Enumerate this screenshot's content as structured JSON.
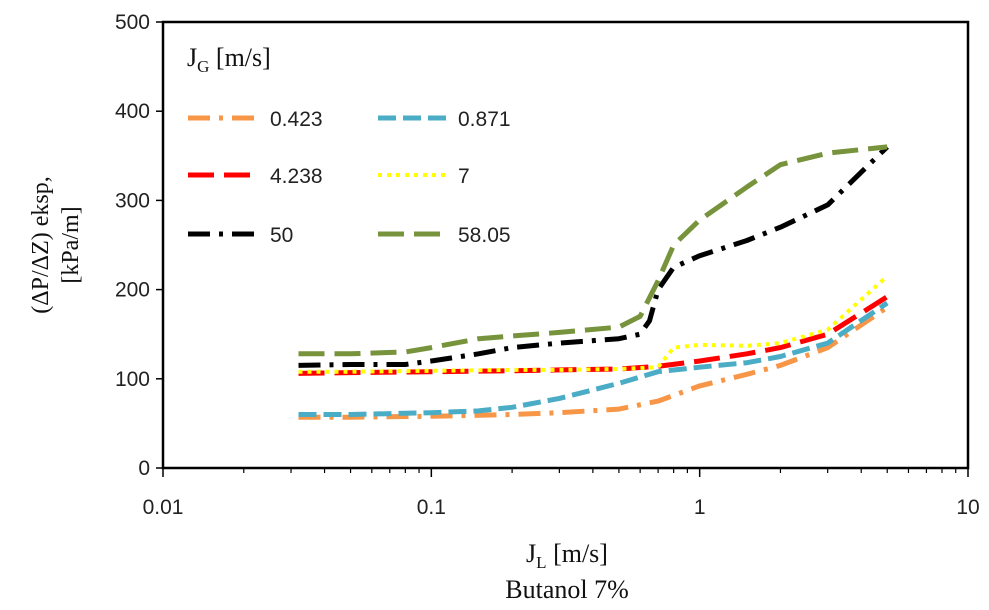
{
  "chart_data": {
    "type": "line",
    "xscale": "log",
    "xlim": [
      0.01,
      10
    ],
    "ylim": [
      0,
      500
    ],
    "x_ticks": [
      "0.01",
      "0.1",
      "1",
      "10"
    ],
    "y_ticks": [
      "0",
      "100",
      "200",
      "300",
      "400",
      "500"
    ],
    "xlabel": {
      "main": "J",
      "sub": "L",
      "unit": " [m/s]"
    },
    "xlabel_note": "Butanol 7%",
    "ylabel": {
      "line1": "(ΔP/ΔZ) eksp,",
      "line2": "[kPa/m]"
    },
    "legend_title": {
      "main": "J",
      "sub": "G",
      "unit": " [m/s]"
    },
    "legend_position": "top-left",
    "grid": false,
    "series": [
      {
        "name": "0.423",
        "color": "#F79646",
        "dash": "dashdot",
        "x": [
          0.032,
          0.05,
          0.1,
          0.2,
          0.3,
          0.5,
          0.7,
          1.0,
          1.5,
          2.0,
          3.0,
          5.0
        ],
        "y": [
          57,
          57,
          58,
          60,
          62,
          66,
          75,
          92,
          105,
          115,
          135,
          180
        ]
      },
      {
        "name": "0.871",
        "color": "#4BACC6",
        "dash": "dash",
        "x": [
          0.032,
          0.05,
          0.1,
          0.15,
          0.2,
          0.3,
          0.5,
          0.7,
          1.0,
          1.5,
          2.0,
          3.0,
          5.0
        ],
        "y": [
          60,
          60,
          62,
          64,
          68,
          78,
          95,
          108,
          113,
          118,
          125,
          140,
          185
        ]
      },
      {
        "name": "4.238",
        "color": "#FF0000",
        "dash": "longdash",
        "x": [
          0.032,
          0.05,
          0.1,
          0.2,
          0.3,
          0.5,
          0.7,
          1.0,
          1.5,
          2.0,
          3.0,
          5.0
        ],
        "y": [
          106,
          107,
          108,
          109,
          110,
          111,
          114,
          120,
          128,
          135,
          150,
          192
        ]
      },
      {
        "name": "7",
        "color": "#FFFF00",
        "dash": "dot",
        "x": [
          0.032,
          0.05,
          0.1,
          0.2,
          0.3,
          0.5,
          0.7,
          0.8,
          1.0,
          1.5,
          2.0,
          3.0,
          5.0
        ],
        "y": [
          108,
          108,
          109,
          110,
          110,
          111,
          113,
          135,
          138,
          137,
          140,
          155,
          215
        ]
      },
      {
        "name": "50",
        "color": "#000000",
        "dash": "dashdot",
        "x": [
          0.032,
          0.05,
          0.08,
          0.1,
          0.15,
          0.2,
          0.3,
          0.5,
          0.6,
          0.65,
          0.7,
          0.8,
          1.0,
          1.5,
          2.0,
          3.0,
          5.0
        ],
        "y": [
          115,
          116,
          116,
          120,
          128,
          135,
          140,
          145,
          150,
          165,
          200,
          225,
          238,
          255,
          270,
          295,
          360
        ]
      },
      {
        "name": "58.05",
        "color": "#77933C",
        "dash": "longdash",
        "x": [
          0.032,
          0.05,
          0.08,
          0.1,
          0.15,
          0.2,
          0.3,
          0.5,
          0.6,
          0.7,
          0.8,
          1.0,
          1.5,
          2.0,
          3.0,
          5.0
        ],
        "y": [
          128,
          128,
          130,
          135,
          145,
          148,
          152,
          158,
          170,
          210,
          250,
          278,
          315,
          340,
          353,
          360
        ]
      }
    ]
  }
}
